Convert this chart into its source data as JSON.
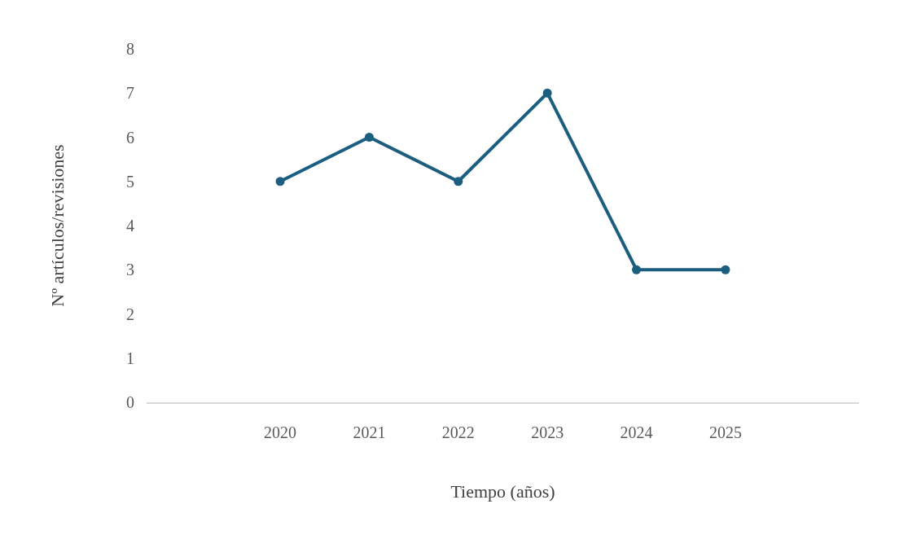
{
  "chart_data": {
    "type": "line",
    "xlabel": "Tiempo (años)",
    "ylabel": "Nº artículos/revisiones",
    "categories": [
      null,
      "2020",
      "2021",
      "2022",
      "2023",
      "2024",
      "2025",
      null
    ],
    "series": [
      {
        "color": "#1b5e80",
        "values": [
          null,
          5,
          6,
          5,
          7,
          3,
          3,
          null
        ]
      }
    ],
    "ylim": [
      0,
      8
    ],
    "yticks": [
      0,
      1,
      2,
      3,
      4,
      5,
      6,
      7,
      8
    ],
    "legend": false,
    "marker": "circle",
    "line_style": "solid"
  }
}
